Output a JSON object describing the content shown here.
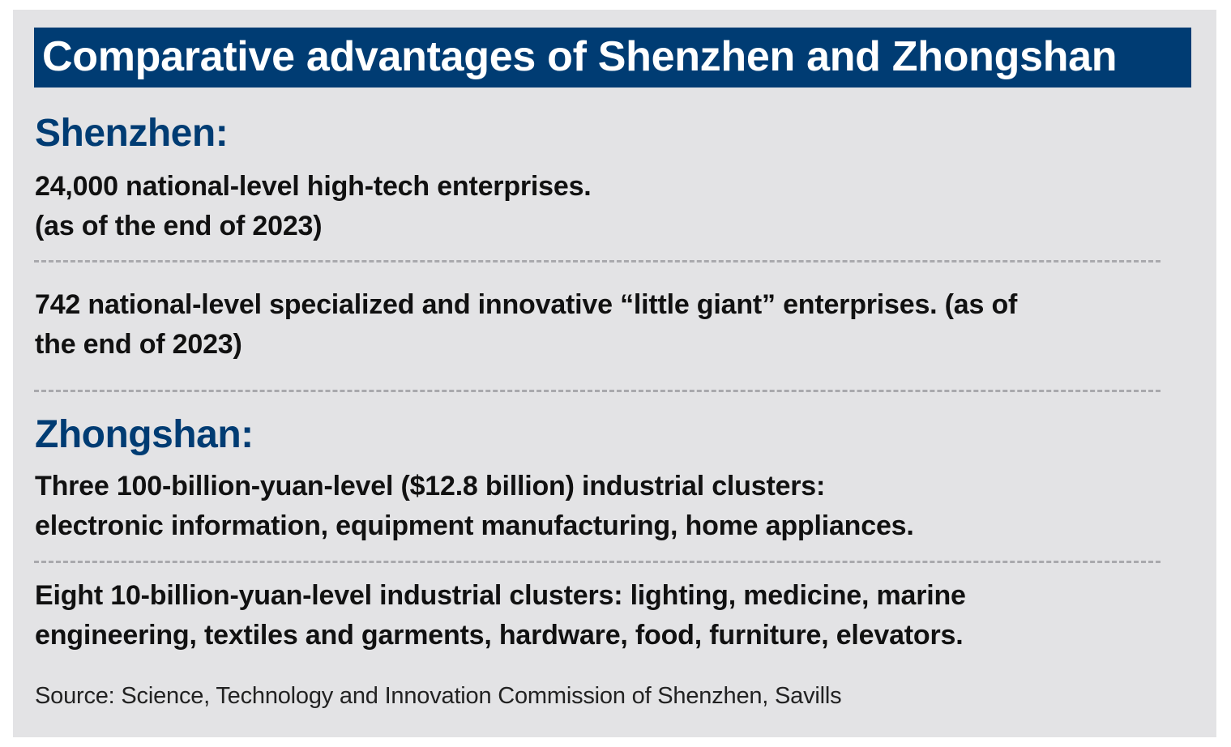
{
  "title": "Comparative advantages of Shenzhen and Zhongshan",
  "sections": [
    {
      "heading": "Shenzhen:",
      "items": [
        {
          "lines": [
            "24,000 national-level high-tech enterprises.",
            "(as of the end of 2023)"
          ]
        },
        {
          "lines": [
            "742 national-level specialized and innovative “little giant” enterprises. (as of",
            "the end of 2023)"
          ]
        }
      ]
    },
    {
      "heading": "Zhongshan:",
      "items": [
        {
          "lines": [
            "Three 100-billion-yuan-level ($12.8 billion) industrial clusters:",
            "electronic information, equipment manufacturing, home appliances."
          ]
        },
        {
          "lines": [
            "Eight 10-billion-yuan-level industrial clusters: lighting, medicine, marine",
            "engineering, textiles and garments, hardware, food, furniture, elevators."
          ]
        }
      ]
    }
  ],
  "source": "Source: Science, Technology and Innovation Commission of Shenzhen, Savills",
  "colors": {
    "heading_blue": "#003c73",
    "panel_background": "#e3e3e5",
    "body_text": "#111111",
    "divider": "#a9a9ad"
  }
}
